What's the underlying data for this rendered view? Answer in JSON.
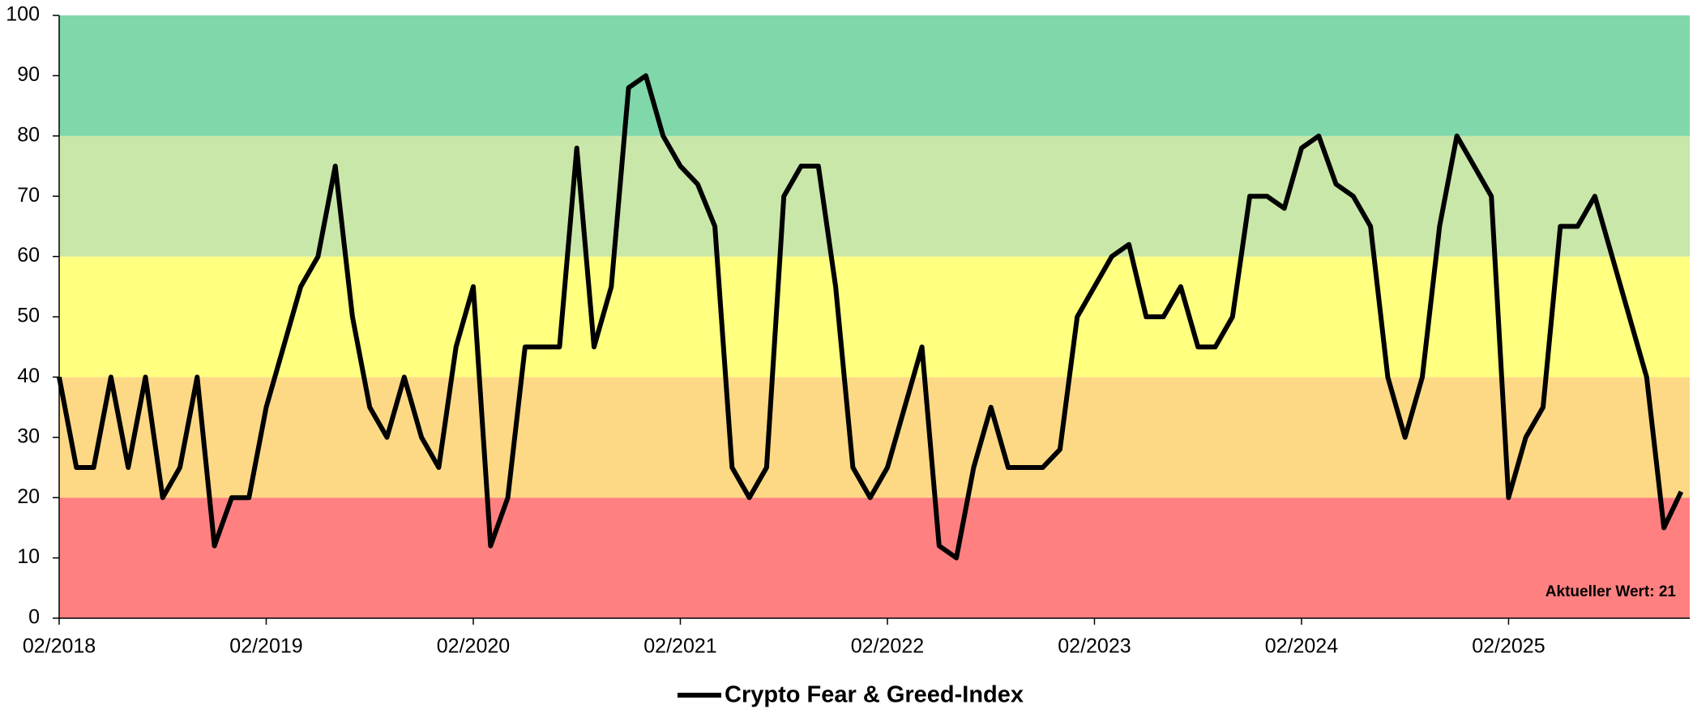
{
  "chart_data": {
    "type": "line",
    "series": [
      {
        "name": "Crypto Fear & Greed-Index",
        "color": "#000000",
        "values": [
          40,
          25,
          25,
          40,
          25,
          40,
          20,
          25,
          40,
          12,
          20,
          20,
          35,
          45,
          55,
          60,
          75,
          50,
          35,
          30,
          40,
          30,
          25,
          45,
          55,
          12,
          20,
          45,
          45,
          45,
          78,
          45,
          55,
          88,
          90,
          80,
          75,
          72,
          65,
          25,
          20,
          25,
          70,
          75,
          75,
          55,
          25,
          20,
          25,
          35,
          45,
          12,
          10,
          25,
          35,
          25,
          25,
          25,
          28,
          50,
          55,
          60,
          62,
          50,
          50,
          55,
          45,
          45,
          50,
          70,
          70,
          68,
          78,
          80,
          72,
          70,
          65,
          40,
          30,
          40,
          65,
          80,
          75,
          70,
          20,
          30,
          35,
          65,
          65,
          70,
          60,
          50,
          40,
          15,
          21
        ]
      }
    ],
    "x": [
      "02/2018",
      "03/2018",
      "04/2018",
      "05/2018",
      "06/2018",
      "07/2018",
      "08/2018",
      "09/2018",
      "10/2018",
      "11/2018",
      "12/2018",
      "01/2019",
      "02/2019",
      "03/2019",
      "04/2019",
      "05/2019",
      "06/2019",
      "07/2019",
      "08/2019",
      "09/2019",
      "10/2019",
      "11/2019",
      "12/2019",
      "01/2020",
      "02/2020",
      "03/2020",
      "04/2020",
      "05/2020",
      "06/2020",
      "07/2020",
      "08/2020",
      "09/2020",
      "10/2020",
      "11/2020",
      "12/2020",
      "01/2021",
      "02/2021",
      "03/2021",
      "04/2021",
      "05/2021",
      "06/2021",
      "07/2021",
      "08/2021",
      "09/2021",
      "10/2021",
      "11/2021",
      "12/2021",
      "01/2022",
      "02/2022",
      "03/2022",
      "04/2022",
      "05/2022",
      "06/2022",
      "07/2022",
      "08/2022",
      "09/2022",
      "10/2022",
      "11/2022",
      "12/2022",
      "01/2023",
      "02/2023",
      "03/2023",
      "04/2023",
      "05/2023",
      "06/2023",
      "07/2023",
      "08/2023",
      "09/2023",
      "10/2023",
      "11/2023",
      "12/2023",
      "01/2024",
      "02/2024",
      "03/2024",
      "04/2024",
      "05/2024",
      "06/2024",
      "07/2024",
      "08/2024",
      "09/2024",
      "10/2024",
      "11/2024",
      "12/2024",
      "01/2025",
      "02/2025",
      "03/2025",
      "04/2025",
      "05/2025",
      "06/2025",
      "07/2025",
      "08/2025",
      "09/2025",
      "10/2025",
      "11/2025",
      "12/2025"
    ],
    "xlim": [
      "02/2018",
      "12/2025"
    ],
    "xticks": [
      "02/2018",
      "02/2019",
      "02/2020",
      "02/2021",
      "02/2022",
      "02/2023",
      "02/2024",
      "02/2025"
    ],
    "ylim": [
      0,
      100
    ],
    "yticks": [
      0,
      10,
      20,
      30,
      40,
      50,
      60,
      70,
      80,
      90,
      100
    ],
    "bands": [
      {
        "from": 0,
        "to": 20,
        "color": "#ff8080"
      },
      {
        "from": 20,
        "to": 40,
        "color": "#fdd986"
      },
      {
        "from": 40,
        "to": 60,
        "color": "#ffff80"
      },
      {
        "from": 60,
        "to": 80,
        "color": "#c9e7a9"
      },
      {
        "from": 80,
        "to": 100,
        "color": "#80d8aa"
      }
    ],
    "annotation": "Aktueller Wert: 21",
    "legend": "bottom"
  }
}
